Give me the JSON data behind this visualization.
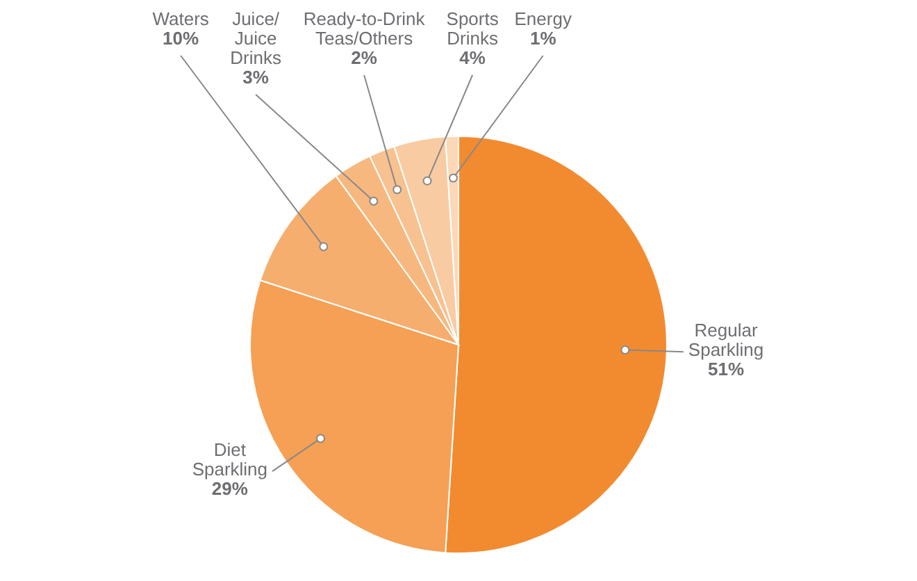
{
  "chart_data": {
    "type": "pie",
    "categories": [
      "Regular Sparkling",
      "Diet Sparkling",
      "Waters",
      "Juice/ Juice Drinks",
      "Ready-to-Drink Teas/Others",
      "Sports Drinks",
      "Energy"
    ],
    "values": [
      51,
      29,
      10,
      3,
      2,
      4,
      1
    ],
    "value_labels": [
      "51%",
      "29%",
      "10%",
      "3%",
      "2%",
      "4%",
      "1%"
    ],
    "colors": [
      "#f28b30",
      "#f5a055",
      "#f6ae6e",
      "#f7b87f",
      "#f8c190",
      "#f9cba2",
      "#fbd8b8"
    ]
  }
}
